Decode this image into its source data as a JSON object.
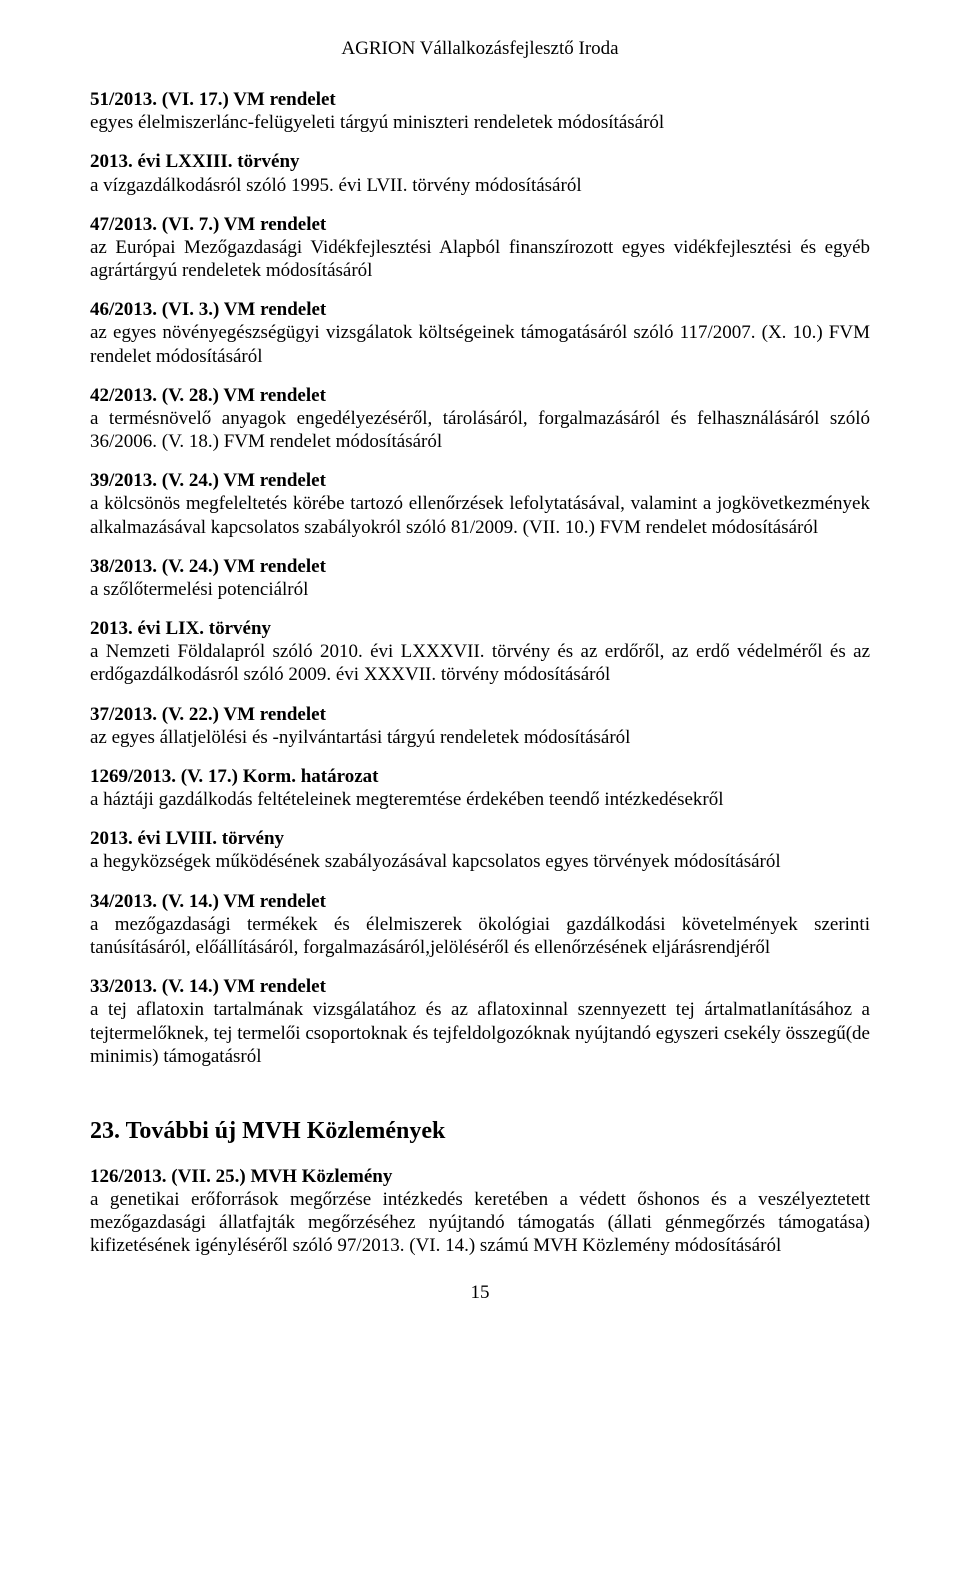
{
  "header": "AGRION Vállalkozásfejlesztő Iroda",
  "entries": [
    {
      "title": "51/2013. (VI. 17.) VM rendelet",
      "body": "egyes élelmiszerlánc-felügyeleti tárgyú miniszteri rendeletek módosításáról",
      "justify": false
    },
    {
      "title": "2013. évi LXXIII. törvény",
      "body": "a vízgazdálkodásról szóló 1995. évi LVII. törvény módosításáról",
      "justify": false
    },
    {
      "title": "47/2013. (VI. 7.) VM rendelet",
      "body": "az Európai Mezőgazdasági Vidékfejlesztési Alapból finanszírozott egyes vidékfejlesztési és egyéb agrártárgyú rendeletek módosításáról",
      "justify": true
    },
    {
      "title": "46/2013. (VI. 3.) VM rendelet",
      "body": "az egyes növényegészségügyi vizsgálatok költségeinek támogatásáról szóló 117/2007. (X. 10.) FVM rendelet módosításáról",
      "justify": true
    },
    {
      "title": "42/2013. (V. 28.) VM rendelet",
      "body": "a termésnövelő anyagok engedélyezéséről, tárolásáról, forgalmazásáról és felhasználásáról szóló 36/2006. (V. 18.) FVM rendelet módosításáról",
      "justify": true
    },
    {
      "title": "39/2013. (V. 24.) VM rendelet",
      "body": "a kölcsönös megfeleltetés körébe tartozó ellenőrzések lefolytatásával, valamint a jogkövetkezmények alkalmazásával kapcsolatos szabályokról szóló 81/2009. (VII. 10.) FVM rendelet módosításáról",
      "justify": true
    },
    {
      "title": "38/2013. (V. 24.) VM rendelet",
      "body": "a szőlőtermelési potenciálról",
      "justify": false
    },
    {
      "title": "2013. évi LIX. törvény",
      "body": "a Nemzeti Földalapról szóló 2010. évi LXXXVII. törvény és az erdőről, az erdő védelméről és az erdőgazdálkodásról szóló 2009. évi XXXVII. törvény módosításáról",
      "justify": true
    },
    {
      "title": "37/2013. (V. 22.) VM rendelet",
      "body": "az egyes állatjelölési és -nyilvántartási tárgyú rendeletek módosításáról",
      "justify": false
    },
    {
      "title": "1269/2013. (V. 17.) Korm. határozat",
      "body": "a háztáji gazdálkodás feltételeinek megteremtése érdekében teendő intézkedésekről",
      "justify": false
    },
    {
      "title": "2013. évi LVIII. törvény",
      "body": "a hegyközségek működésének szabályozásával kapcsolatos egyes törvények módosításáról",
      "justify": false
    },
    {
      "title": "34/2013. (V. 14.) VM rendelet",
      "body": "a mezőgazdasági termékek és élelmiszerek ökológiai gazdálkodási követelmények szerinti tanúsításáról, előállításáról, forgalmazásáról,jelöléséről és ellenőrzésének eljárásrendjéről",
      "justify": true
    },
    {
      "title": "33/2013. (V. 14.) VM rendelet",
      "body": "a tej aflatoxin tartalmának vizsgálatához és az aflatoxinnal szennyezett tej ártalmatlanításához a tejtermelőknek, tej termelői csoportoknak és tejfeldolgozóknak nyújtandó egyszeri csekély összegű(de minimis) támogatásról",
      "justify": true
    }
  ],
  "section_heading": "23. További új MVH Közlemények",
  "bottom_entries": [
    {
      "title": "126/2013. (VII. 25.) MVH Közlemény",
      "body": "a genetikai erőforrások megőrzése intézkedés keretében a védett őshonos és a veszélyeztetett mezőgazdasági állatfajták megőrzéséhez nyújtandó támogatás (állati génmegőrzés támogatása) kifizetésének igényléséről szóló 97/2013. (VI. 14.) számú MVH Közlemény módosításáról",
      "justify": true
    }
  ],
  "page_number": "15"
}
